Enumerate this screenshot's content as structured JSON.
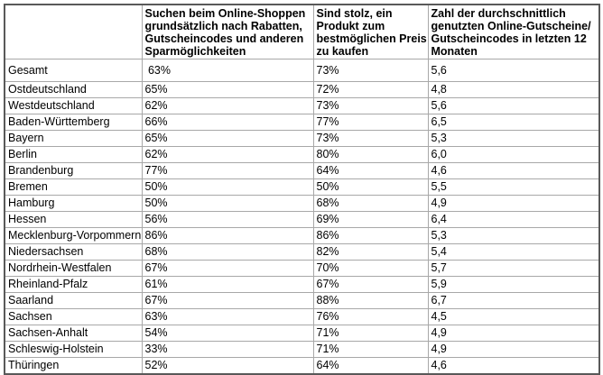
{
  "colors": {
    "outer_border": "#595959",
    "grid_line": "#a8a8a8",
    "text": "#000000",
    "background": "#ffffff"
  },
  "table": {
    "columns": [
      {
        "key": "region",
        "label": ""
      },
      {
        "key": "search_discounts",
        "label": "Suchen beim Online-Shoppen\ngrundsätzlich nach Rabatten,\nGutscheincodes und anderen\nSparmöglichkeiten"
      },
      {
        "key": "proud_best_price",
        "label": "Sind stolz, ein\nProdukt zum\nbestmöglichen Preis\nzu kaufen"
      },
      {
        "key": "avg_vouchers",
        "label": "Zahl der durchschnittlich\ngenutzten Online-Gutscheine/\nGutscheincodes in letzten 12\nMonaten"
      }
    ],
    "rows": [
      {
        "region": "Gesamt",
        "search_discounts": " 63%",
        "proud_best_price": "73%",
        "avg_vouchers": "5,6"
      },
      {
        "region": "Ostdeutschland",
        "search_discounts": "65%",
        "proud_best_price": "72%",
        "avg_vouchers": "4,8"
      },
      {
        "region": "Westdeutschland",
        "search_discounts": "62%",
        "proud_best_price": "73%",
        "avg_vouchers": "5,6"
      },
      {
        "region": "Baden-Württemberg",
        "search_discounts": "66%",
        "proud_best_price": "77%",
        "avg_vouchers": "6,5"
      },
      {
        "region": "Bayern",
        "search_discounts": "65%",
        "proud_best_price": "73%",
        "avg_vouchers": "5,3"
      },
      {
        "region": "Berlin",
        "search_discounts": "62%",
        "proud_best_price": "80%",
        "avg_vouchers": "6,0"
      },
      {
        "region": "Brandenburg",
        "search_discounts": "77%",
        "proud_best_price": "64%",
        "avg_vouchers": "4,6"
      },
      {
        "region": "Bremen",
        "search_discounts": "50%",
        "proud_best_price": "50%",
        "avg_vouchers": "5,5"
      },
      {
        "region": "Hamburg",
        "search_discounts": "50%",
        "proud_best_price": "68%",
        "avg_vouchers": "4,9"
      },
      {
        "region": "Hessen",
        "search_discounts": "56%",
        "proud_best_price": "69%",
        "avg_vouchers": "6,4"
      },
      {
        "region": "Mecklenburg-Vorpommern",
        "search_discounts": "86%",
        "proud_best_price": "86%",
        "avg_vouchers": "5,3"
      },
      {
        "region": "Niedersachsen",
        "search_discounts": "68%",
        "proud_best_price": "82%",
        "avg_vouchers": "5,4"
      },
      {
        "region": "Nordrhein-Westfalen",
        "search_discounts": "67%",
        "proud_best_price": "70%",
        "avg_vouchers": "5,7"
      },
      {
        "region": "Rheinland-Pfalz",
        "search_discounts": "61%",
        "proud_best_price": "67%",
        "avg_vouchers": "5,9"
      },
      {
        "region": "Saarland",
        "search_discounts": "67%",
        "proud_best_price": "88%",
        "avg_vouchers": "6,7"
      },
      {
        "region": "Sachsen",
        "search_discounts": "63%",
        "proud_best_price": "76%",
        "avg_vouchers": "4,5"
      },
      {
        "region": "Sachsen-Anhalt",
        "search_discounts": "54%",
        "proud_best_price": "71%",
        "avg_vouchers": "4,9"
      },
      {
        "region": "Schleswig-Holstein",
        "search_discounts": "33%",
        "proud_best_price": "71%",
        "avg_vouchers": "4,9"
      },
      {
        "region": "Thüringen",
        "search_discounts": "52%",
        "proud_best_price": "64%",
        "avg_vouchers": "4,6"
      }
    ]
  },
  "chart_data": {
    "type": "table",
    "title": "",
    "categories": [
      "Gesamt",
      "Ostdeutschland",
      "Westdeutschland",
      "Baden-Württemberg",
      "Bayern",
      "Berlin",
      "Brandenburg",
      "Bremen",
      "Hamburg",
      "Hessen",
      "Mecklenburg-Vorpommern",
      "Niedersachsen",
      "Nordrhein-Westfalen",
      "Rheinland-Pfalz",
      "Saarland",
      "Sachsen",
      "Sachsen-Anhalt",
      "Schleswig-Holstein",
      "Thüringen"
    ],
    "series": [
      {
        "name": "Suchen beim Online-Shoppen grundsätzlich nach Rabatten, Gutscheincodes und anderen Sparmöglichkeiten (%)",
        "values": [
          63,
          65,
          62,
          66,
          65,
          62,
          77,
          50,
          50,
          56,
          86,
          68,
          67,
          61,
          67,
          63,
          54,
          33,
          52
        ]
      },
      {
        "name": "Sind stolz, ein Produkt zum bestmöglichen Preis zu kaufen (%)",
        "values": [
          73,
          72,
          73,
          77,
          73,
          80,
          64,
          50,
          68,
          69,
          86,
          82,
          70,
          67,
          88,
          76,
          71,
          71,
          64
        ]
      },
      {
        "name": "Zahl der durchschnittlich genutzten Online-Gutscheine/Gutscheincodes in letzten 12 Monaten",
        "values": [
          5.6,
          4.8,
          5.6,
          6.5,
          5.3,
          6.0,
          4.6,
          5.5,
          4.9,
          6.4,
          5.3,
          5.4,
          5.7,
          5.9,
          6.7,
          4.5,
          4.9,
          4.9,
          4.6
        ]
      }
    ]
  }
}
